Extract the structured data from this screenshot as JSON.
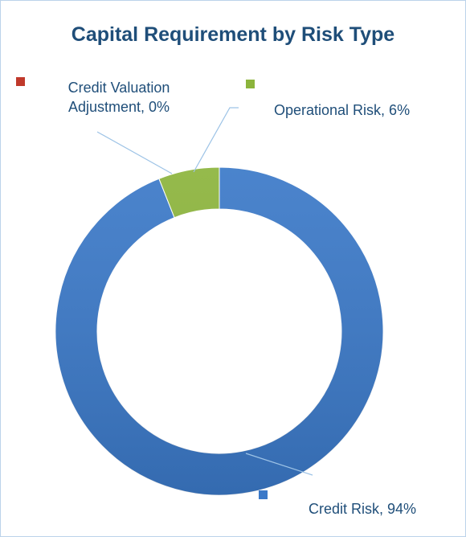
{
  "chart_data": {
    "type": "donut",
    "title": "Capital Requirement by Risk Type",
    "categories": [
      "Credit Risk",
      "Credit Valuation Adjustment",
      "Operational Risk"
    ],
    "values": [
      94,
      0,
      6
    ],
    "value_labels": [
      "Credit Risk, 94%",
      "Credit Valuation Adjustment, 0%",
      "Operational Risk, 6%"
    ],
    "colors": [
      "#3b79c8",
      "#c0392b",
      "#8cb43c"
    ]
  }
}
